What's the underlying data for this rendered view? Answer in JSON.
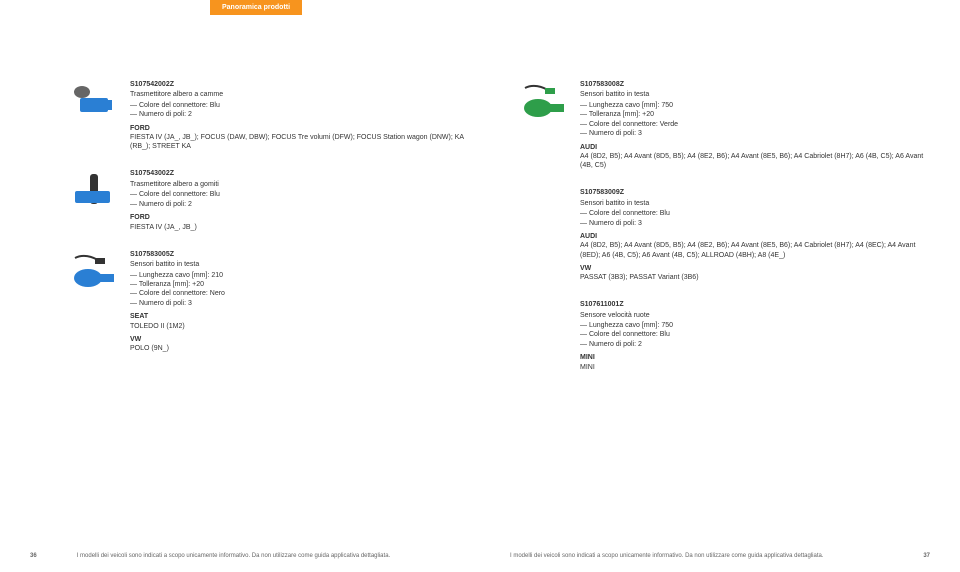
{
  "header": {
    "tab": "Panoramica prodotti"
  },
  "left_col": [
    {
      "sku": "S107542002Z",
      "type": "Trasmettitore albero a camme",
      "specs": [
        "— Colore del connettore: Blu",
        "— Numero di poli: 2"
      ],
      "apps": [
        {
          "brand": "FORD",
          "models": "FIESTA IV (JA_, JB_); FOCUS (DAW, DBW); FOCUS Tre volumi (DFW); FOCUS Station wagon (DNW); KA (RB_); STREET KA"
        }
      ],
      "thumb": "camshaft"
    },
    {
      "sku": "S107543002Z",
      "type": "Trasmettitore albero a gomiti",
      "specs": [
        "— Colore del connettore: Blu",
        "— Numero di poli: 2"
      ],
      "apps": [
        {
          "brand": "FORD",
          "models": "FIESTA IV (JA_, JB_)"
        }
      ],
      "thumb": "crank"
    },
    {
      "sku": "S107583005Z",
      "type": "Sensori battito in testa",
      "specs": [
        "— Lunghezza cavo [mm]: 210",
        "— Tolleranza [mm]: +20",
        "— Colore del connettore: Nero",
        "— Numero di poli: 3"
      ],
      "apps": [
        {
          "brand": "SEAT",
          "models": "TOLEDO II (1M2)"
        },
        {
          "brand": "VW",
          "models": "POLO (9N_)"
        }
      ],
      "thumb": "knock-black"
    }
  ],
  "right_col": [
    {
      "sku": "S107583008Z",
      "type": "Sensori battito in testa",
      "specs": [
        "— Lunghezza cavo [mm]: 750",
        "— Tolleranza [mm]: +20",
        "— Colore del connettore: Verde",
        "— Numero di poli: 3"
      ],
      "apps": [
        {
          "brand": "AUDI",
          "models": "A4 (8D2, B5); A4 Avant (8D5, B5); A4 (8E2, B6); A4 Avant (8E5, B6); A4 Cabriolet (8H7); A6 (4B, C5); A6 Avant (4B, C5)"
        }
      ],
      "thumb": "knock-green"
    },
    {
      "sku": "S107583009Z",
      "type": "Sensori battito in testa",
      "specs": [
        "— Colore del connettore: Blu",
        "— Numero di poli: 3"
      ],
      "apps": [
        {
          "brand": "AUDI",
          "models": "A4 (8D2, B5); A4 Avant (8D5, B5); A4 (8E2, B6); A4 Avant (8E5, B6); A4 Cabriolet (8H7); A4 (8EC); A4 Avant (8ED); A6 (4B, C5); A6 Avant (4B, C5); ALLROAD (4BH); A8 (4E_)"
        },
        {
          "brand": "VW",
          "models": "PASSAT (3B3); PASSAT Variant (3B6)"
        }
      ],
      "thumb": "none"
    },
    {
      "sku": "S107611001Z",
      "type": "Sensore velocità ruote",
      "specs": [
        "— Lunghezza cavo [mm]: 750",
        "— Colore del connettore: Blu",
        "— Numero di poli: 2"
      ],
      "apps": [
        {
          "brand": "MINI",
          "models": "MINI"
        }
      ],
      "thumb": "none"
    }
  ],
  "footer": {
    "left_page": "36",
    "right_page": "37",
    "disclaimer": "I modelli dei veicoli sono indicati a scopo unicamente informativo. Da non utilizzare come guida applicativa dettagliata."
  }
}
